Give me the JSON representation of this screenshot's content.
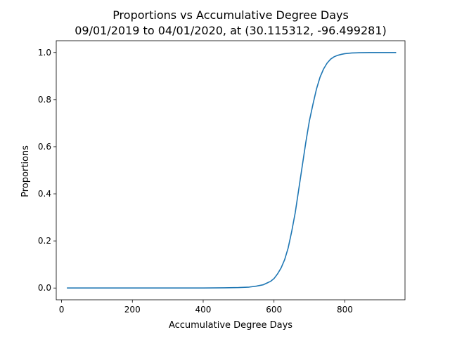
{
  "chart_data": {
    "type": "line",
    "title": "Proportions vs Accumulative Degree Days",
    "subtitle": "09/01/2019 to 04/01/2020, at (30.115312, -96.499281)",
    "xlabel": "Accumulative Degree Days",
    "ylabel": "Proportions",
    "xlim": [
      -15,
      970
    ],
    "ylim": [
      -0.05,
      1.05
    ],
    "xticks": [
      0,
      200,
      400,
      600,
      800
    ],
    "yticks": [
      0.0,
      0.2,
      0.4,
      0.6,
      0.8,
      1.0
    ],
    "xtick_labels": [
      "0",
      "200",
      "400",
      "600",
      "800"
    ],
    "ytick_labels": [
      "0.0",
      "0.2",
      "0.4",
      "0.6",
      "0.8",
      "1.0"
    ],
    "grid": false,
    "series": [
      {
        "color": "#1f77b4",
        "x": [
          15,
          100,
          200,
          300,
          400,
          460,
          500,
          530,
          550,
          570,
          590,
          600,
          610,
          620,
          630,
          640,
          650,
          660,
          670,
          680,
          690,
          700,
          710,
          720,
          730,
          740,
          750,
          760,
          770,
          780,
          790,
          800,
          820,
          840,
          870,
          900,
          945
        ],
        "y": [
          0.0,
          0.0,
          0.0,
          0.0,
          0.0,
          0.001,
          0.002,
          0.004,
          0.008,
          0.014,
          0.028,
          0.04,
          0.06,
          0.085,
          0.12,
          0.17,
          0.24,
          0.32,
          0.42,
          0.52,
          0.62,
          0.71,
          0.78,
          0.845,
          0.895,
          0.93,
          0.955,
          0.972,
          0.982,
          0.988,
          0.992,
          0.995,
          0.998,
          0.999,
          1.0,
          1.0,
          1.0
        ]
      }
    ]
  }
}
